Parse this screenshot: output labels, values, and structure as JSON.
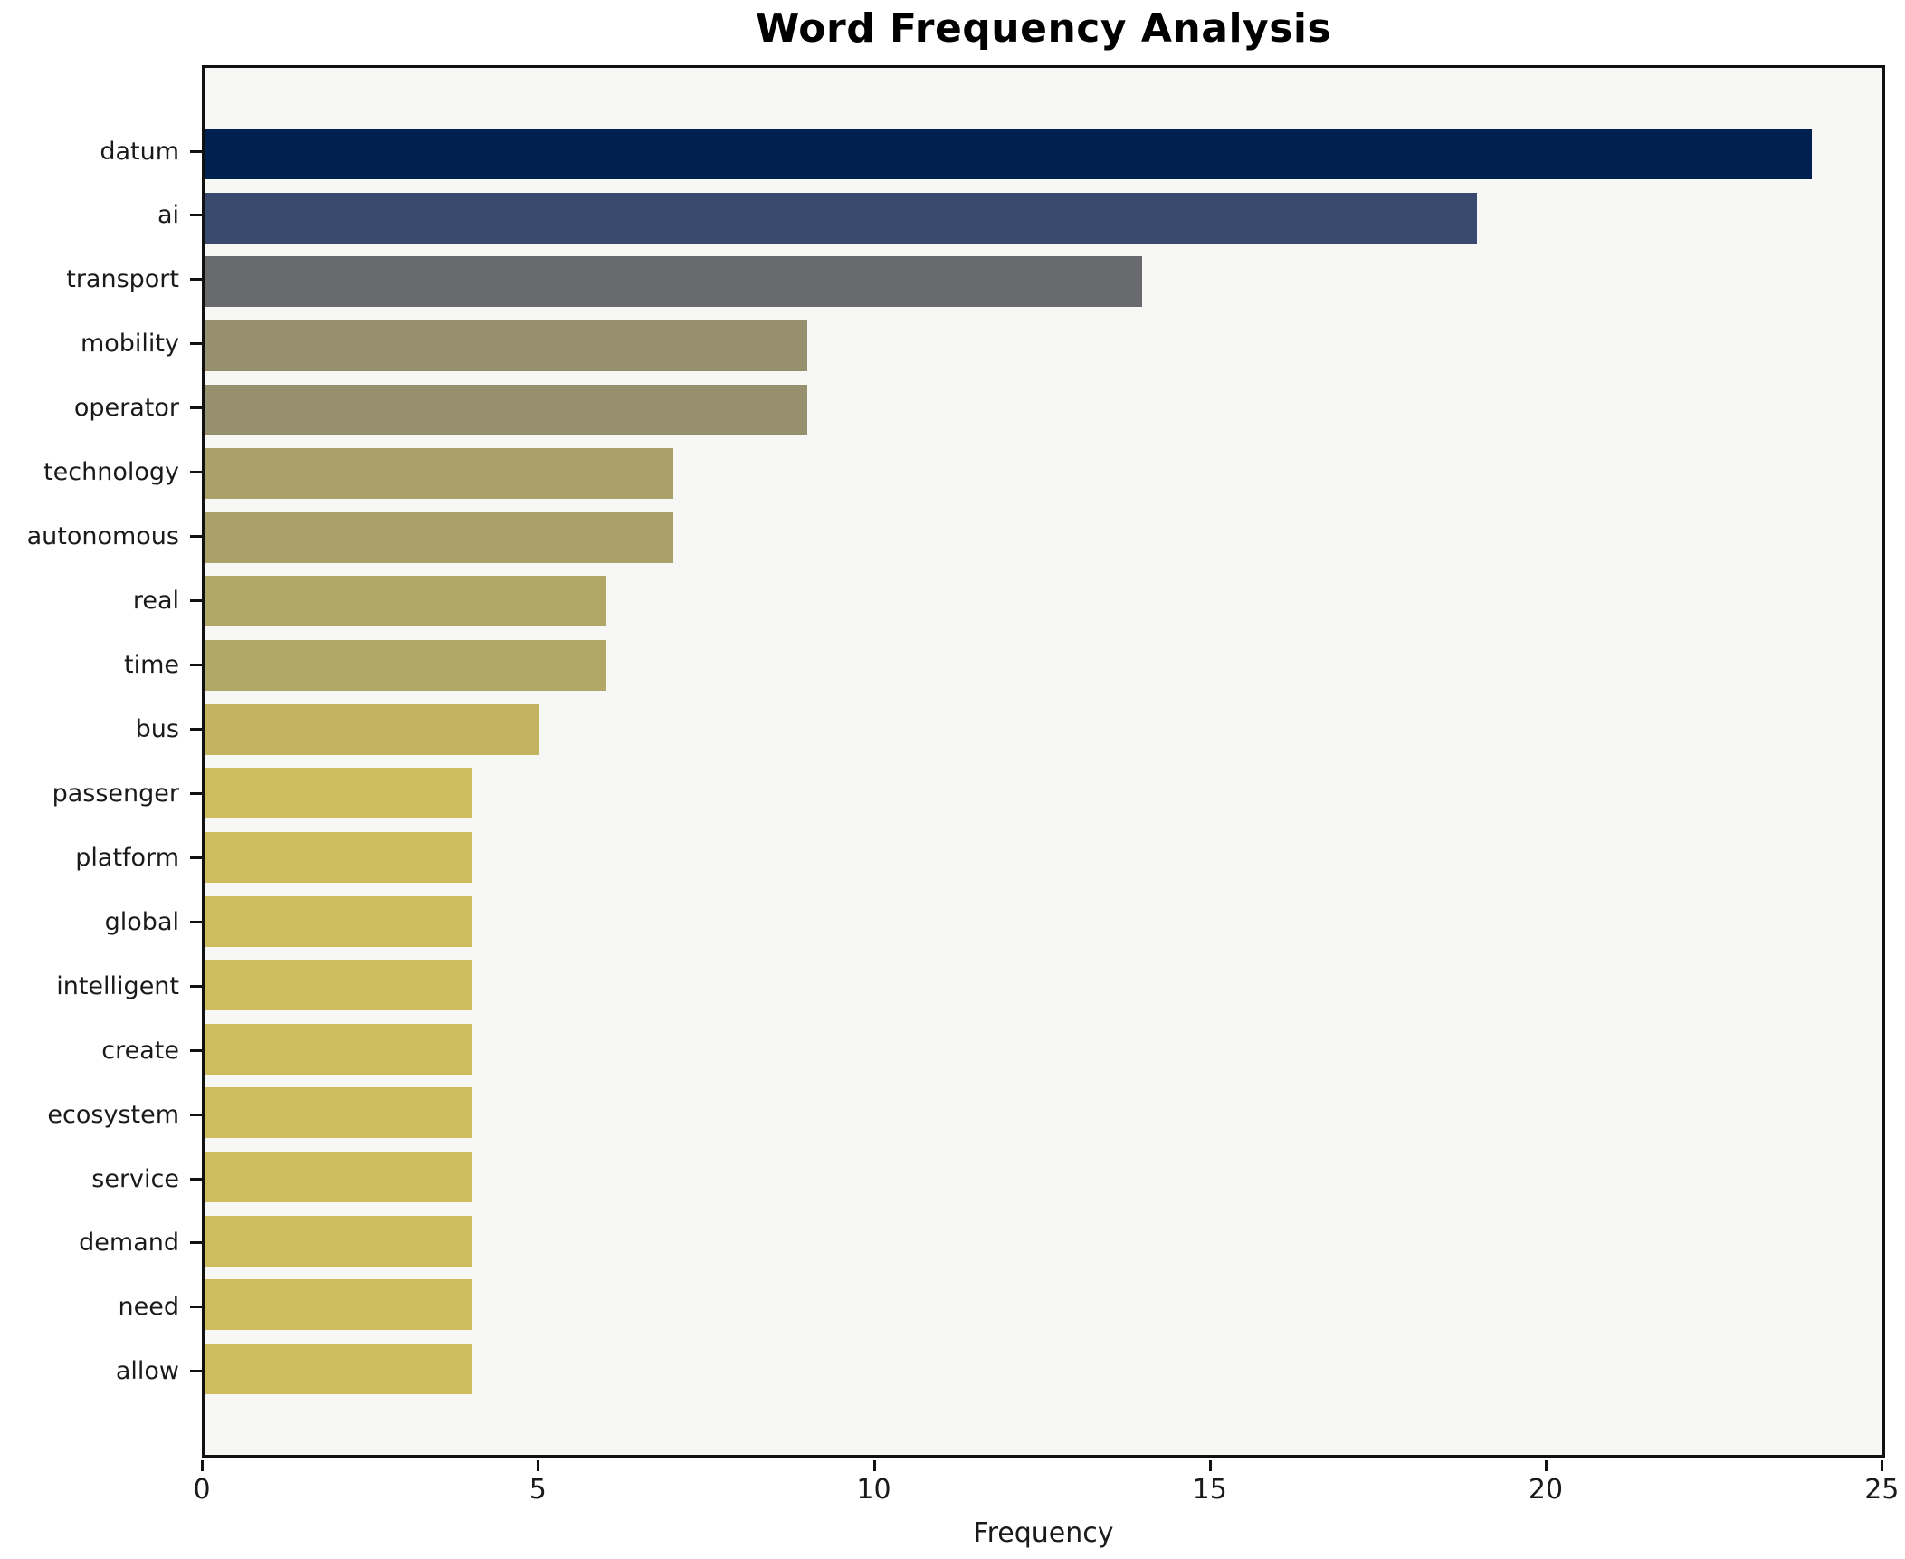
{
  "title": "Word Frequency Analysis",
  "chart_data": {
    "type": "bar",
    "orientation": "horizontal",
    "title": "Word Frequency Analysis",
    "xlabel": "Frequency",
    "ylabel": "",
    "grid": false,
    "legend": "none",
    "plot_background": "#f7f7f6",
    "figure_background": "#ffffff",
    "xlim": [
      0,
      25.05
    ],
    "x_ticks": [
      0,
      5,
      10,
      15,
      20,
      25
    ],
    "categories": [
      "datum",
      "ai",
      "transport",
      "mobility",
      "operator",
      "technology",
      "autonomous",
      "real",
      "time",
      "bus",
      "passenger",
      "platform",
      "global",
      "intelligent",
      "create",
      "ecosystem",
      "service",
      "demand",
      "need",
      "allow"
    ],
    "values": [
      24,
      19,
      14,
      9,
      9,
      7,
      7,
      6,
      6,
      5,
      4,
      4,
      4,
      4,
      4,
      4,
      4,
      4,
      4,
      4
    ],
    "bar_colors": [
      "#00214f",
      "#3a4a6f",
      "#696a6e",
      "#97906e",
      "#97906e",
      "#aaa069",
      "#aaa069",
      "#b1a767",
      "#b1a767",
      "#c3b25f",
      "#cfbc5e",
      "#cfbc5e",
      "#cfbc5e",
      "#cfbc5e",
      "#cfbc5e",
      "#cfbc5e",
      "#cfbc5e",
      "#cfbc5e",
      "#cfbc5e",
      "#cfbc5e"
    ]
  }
}
